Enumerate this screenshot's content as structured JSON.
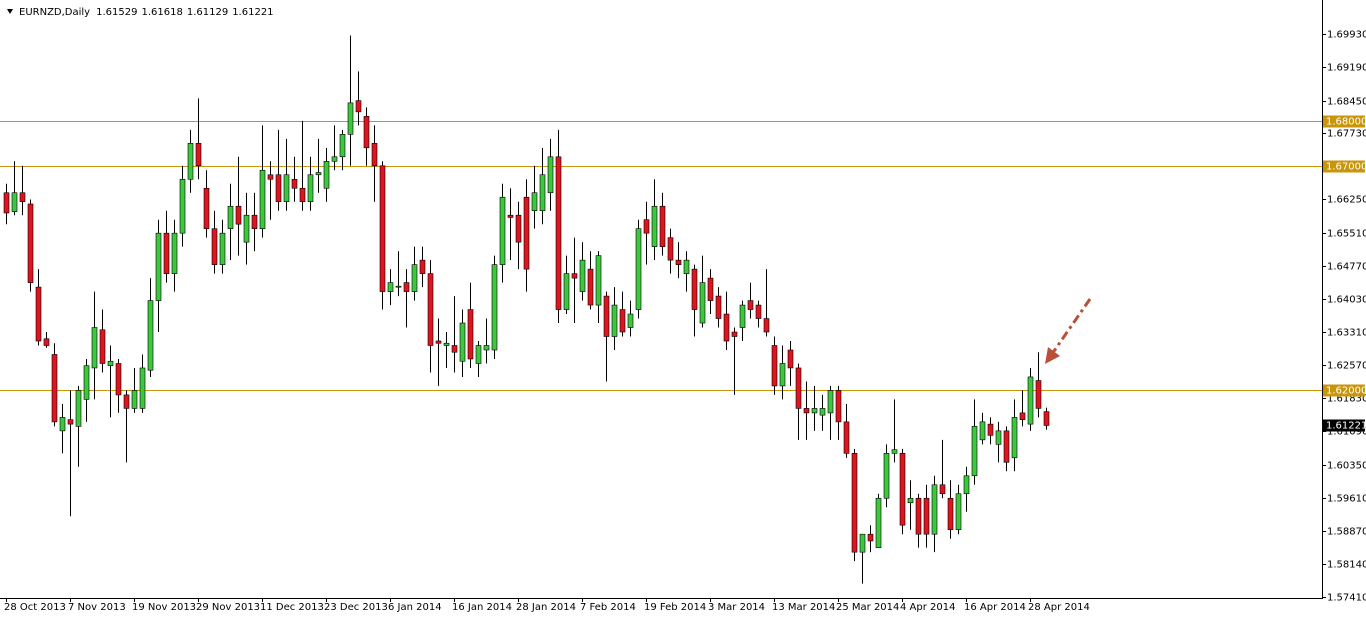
{
  "chart_data": {
    "type": "candlestick",
    "title": "EURNZD,Daily",
    "header_values": [
      1.61529,
      1.61618,
      1.61129,
      1.61221
    ],
    "categories": [
      "28 Oct 2013",
      null,
      null,
      null,
      null,
      null,
      null,
      null,
      "7 Nov 2013",
      null,
      null,
      null,
      null,
      null,
      null,
      null,
      "19 Nov 2013",
      null,
      null,
      null,
      null,
      null,
      null,
      null,
      "29 Nov 2013",
      null,
      null,
      null,
      null,
      null,
      null,
      null,
      "11 Dec 2013",
      null,
      null,
      null,
      null,
      null,
      null,
      null,
      "23 Dec 2013",
      null,
      null,
      null,
      null,
      null,
      null,
      null,
      "6 Jan 2014",
      null,
      null,
      null,
      null,
      null,
      null,
      null,
      "16 Jan 2014",
      null,
      null,
      null,
      null,
      null,
      null,
      null,
      "28 Jan 2014",
      null,
      null,
      null,
      null,
      null,
      null,
      null,
      "7 Feb 2014",
      null,
      null,
      null,
      null,
      null,
      null,
      null,
      "19 Feb 2014",
      null,
      null,
      null,
      null,
      null,
      null,
      null,
      "3 Mar 2014",
      null,
      null,
      null,
      null,
      null,
      null,
      null,
      "13 Mar 2014",
      null,
      null,
      null,
      null,
      null,
      null,
      null,
      "25 Mar 2014",
      null,
      null,
      null,
      null,
      null,
      null,
      null,
      "4 Apr 2014",
      null,
      null,
      null,
      null,
      null,
      null,
      null,
      "16 Apr 2014",
      null,
      null,
      null,
      null,
      null,
      null,
      null,
      "28 Apr 2014",
      null,
      null
    ],
    "open": [
      1.664,
      1.6598,
      1.664,
      1.6615,
      1.643,
      1.6315,
      1.628,
      1.611,
      1.6135,
      1.612,
      1.618,
      1.625,
      1.6335,
      1.6255,
      1.626,
      1.619,
      1.616,
      1.616,
      1.6245,
      1.64,
      1.655,
      1.646,
      1.655,
      1.667,
      1.675,
      1.665,
      1.656,
      1.648,
      1.656,
      1.661,
      1.653,
      1.659,
      1.656,
      1.668,
      1.668,
      1.662,
      1.667,
      1.665,
      1.662,
      1.668,
      1.665,
      1.671,
      1.672,
      1.677,
      1.6845,
      1.681,
      1.675,
      1.67,
      1.642,
      1.643,
      1.644,
      1.642,
      1.649,
      1.646,
      1.631,
      1.63,
      1.63,
      1.6265,
      1.638,
      1.626,
      1.629,
      1.629,
      1.648,
      1.659,
      1.659,
      1.663,
      1.66,
      1.66,
      1.664,
      1.672,
      1.638,
      1.646,
      1.642,
      1.647,
      1.639,
      1.641,
      1.632,
      1.638,
      1.634,
      1.638,
      1.658,
      1.652,
      1.661,
      1.654,
      1.649,
      1.646,
      1.647,
      1.635,
      1.645,
      1.641,
      1.637,
      1.633,
      1.634,
      1.64,
      1.639,
      1.636,
      1.63,
      1.621,
      1.629,
      1.625,
      1.616,
      1.615,
      1.6145,
      1.615,
      1.62,
      1.613,
      1.606,
      1.584,
      1.588,
      1.585,
      1.596,
      1.606,
      1.606,
      1.595,
      1.596,
      1.596,
      1.588,
      1.599,
      1.596,
      1.589,
      1.597,
      1.601,
      1.609,
      1.6125,
      1.608,
      1.611,
      1.605,
      1.615,
      1.6125,
      1.6222,
      1.61529
    ],
    "high": [
      1.666,
      1.671,
      1.67,
      1.6625,
      1.647,
      1.633,
      1.6305,
      1.617,
      1.62,
      1.621,
      1.627,
      1.642,
      1.638,
      1.63,
      1.627,
      1.62,
      1.625,
      1.628,
      1.645,
      1.658,
      1.66,
      1.658,
      1.67,
      1.678,
      1.685,
      1.669,
      1.66,
      1.658,
      1.666,
      1.672,
      1.664,
      1.664,
      1.679,
      1.671,
      1.678,
      1.676,
      1.672,
      1.68,
      1.672,
      1.676,
      1.674,
      1.679,
      1.678,
      1.699,
      1.691,
      1.683,
      1.679,
      1.671,
      1.647,
      1.651,
      1.647,
      1.652,
      1.652,
      1.649,
      1.636,
      1.633,
      1.641,
      1.638,
      1.644,
      1.631,
      1.636,
      1.65,
      1.666,
      1.665,
      1.662,
      1.667,
      1.67,
      1.674,
      1.676,
      1.678,
      1.65,
      1.654,
      1.653,
      1.651,
      1.651,
      1.642,
      1.643,
      1.642,
      1.64,
      1.658,
      1.662,
      1.667,
      1.664,
      1.656,
      1.653,
      1.651,
      1.648,
      1.65,
      1.647,
      1.643,
      1.642,
      1.634,
      1.64,
      1.644,
      1.64,
      1.647,
      1.632,
      1.63,
      1.631,
      1.626,
      1.622,
      1.621,
      1.619,
      1.621,
      1.621,
      1.617,
      1.607,
      1.588,
      1.59,
      1.597,
      1.608,
      1.618,
      1.607,
      1.6,
      1.597,
      1.599,
      1.601,
      1.609,
      1.6,
      1.599,
      1.603,
      1.618,
      1.615,
      1.614,
      1.613,
      1.612,
      1.618,
      1.62,
      1.625,
      1.6285,
      1.61618
    ],
    "low": [
      1.657,
      1.659,
      1.659,
      1.642,
      1.63,
      1.6295,
      1.612,
      1.606,
      1.592,
      1.603,
      1.613,
      1.618,
      1.624,
      1.614,
      1.615,
      1.604,
      1.615,
      1.615,
      1.623,
      1.633,
      1.644,
      1.642,
      1.652,
      1.664,
      1.667,
      1.654,
      1.646,
      1.646,
      1.649,
      1.65,
      1.648,
      1.651,
      1.654,
      1.658,
      1.66,
      1.66,
      1.662,
      1.66,
      1.66,
      1.664,
      1.662,
      1.669,
      1.669,
      1.67,
      1.679,
      1.67,
      1.662,
      1.638,
      1.639,
      1.641,
      1.634,
      1.64,
      1.643,
      1.624,
      1.621,
      1.625,
      1.624,
      1.623,
      1.625,
      1.623,
      1.626,
      1.627,
      1.644,
      1.649,
      1.647,
      1.642,
      1.656,
      1.657,
      1.66,
      1.635,
      1.637,
      1.635,
      1.64,
      1.638,
      1.635,
      1.622,
      1.629,
      1.632,
      1.632,
      1.636,
      1.648,
      1.649,
      1.65,
      1.646,
      1.645,
      1.642,
      1.632,
      1.634,
      1.637,
      1.634,
      1.629,
      1.619,
      1.631,
      1.636,
      1.634,
      1.632,
      1.619,
      1.618,
      1.621,
      1.609,
      1.609,
      1.611,
      1.611,
      1.609,
      1.609,
      1.605,
      1.582,
      1.577,
      1.584,
      1.585,
      1.594,
      1.604,
      1.588,
      1.589,
      1.585,
      1.585,
      1.584,
      1.596,
      1.587,
      1.588,
      1.593,
      1.599,
      1.608,
      1.608,
      1.604,
      1.602,
      1.602,
      1.612,
      1.611,
      1.614,
      1.61129
    ],
    "close": [
      1.6595,
      1.664,
      1.662,
      1.644,
      1.631,
      1.63,
      1.613,
      1.614,
      1.6125,
      1.62,
      1.6255,
      1.634,
      1.626,
      1.6265,
      1.619,
      1.616,
      1.62,
      1.625,
      1.64,
      1.655,
      1.646,
      1.655,
      1.667,
      1.675,
      1.67,
      1.656,
      1.648,
      1.655,
      1.661,
      1.657,
      1.659,
      1.656,
      1.669,
      1.667,
      1.662,
      1.668,
      1.665,
      1.662,
      1.668,
      1.6685,
      1.671,
      1.672,
      1.677,
      1.684,
      1.682,
      1.674,
      1.67,
      1.642,
      1.644,
      1.6432,
      1.642,
      1.648,
      1.646,
      1.63,
      1.6305,
      1.6305,
      1.6285,
      1.635,
      1.627,
      1.63,
      1.63,
      1.648,
      1.663,
      1.6585,
      1.653,
      1.647,
      1.664,
      1.668,
      1.672,
      1.638,
      1.646,
      1.645,
      1.649,
      1.639,
      1.65,
      1.632,
      1.639,
      1.633,
      1.637,
      1.656,
      1.655,
      1.661,
      1.652,
      1.649,
      1.648,
      1.649,
      1.638,
      1.644,
      1.64,
      1.636,
      1.631,
      1.632,
      1.639,
      1.638,
      1.636,
      1.633,
      1.621,
      1.626,
      1.625,
      1.616,
      1.615,
      1.616,
      1.616,
      1.62,
      1.613,
      1.606,
      1.584,
      1.588,
      1.5865,
      1.596,
      1.606,
      1.6068,
      1.59,
      1.596,
      1.588,
      1.588,
      1.599,
      1.597,
      1.589,
      1.597,
      1.601,
      1.612,
      1.613,
      1.61,
      1.611,
      1.604,
      1.614,
      1.6135,
      1.623,
      1.616,
      1.61221
    ],
    "up_color": "#3cc83c",
    "down_color": "#e0141e",
    "wick_color": "#000000",
    "ylim": [
      1.5738,
      1.7069
    ],
    "yticks": [
      {
        "value": 1.6993,
        "label": "1.69930"
      },
      {
        "value": 1.6919,
        "label": "1.69190"
      },
      {
        "value": 1.6845,
        "label": "1.68450"
      },
      {
        "value": 1.6773,
        "label": "1.67730"
      },
      {
        "value": 1.6625,
        "label": "1.66250"
      },
      {
        "value": 1.6551,
        "label": "1.65510"
      },
      {
        "value": 1.6477,
        "label": "1.64770"
      },
      {
        "value": 1.6403,
        "label": "1.64030"
      },
      {
        "value": 1.6331,
        "label": "1.63310"
      },
      {
        "value": 1.6257,
        "label": "1.62570"
      },
      {
        "value": 1.6183,
        "label": "1.61830"
      },
      {
        "value": 1.6109,
        "label": "1.61090"
      },
      {
        "value": 1.6035,
        "label": "1.60350"
      },
      {
        "value": 1.5961,
        "label": "1.59610"
      },
      {
        "value": 1.5887,
        "label": "1.58870"
      },
      {
        "value": 1.5814,
        "label": "1.58140"
      },
      {
        "value": 1.5741,
        "label": "1.57410"
      }
    ],
    "levels": [
      {
        "value": 1.68,
        "label": "1.68000"
      },
      {
        "value": 1.67,
        "label": "1.67000"
      },
      {
        "value": 1.62,
        "label": "1.62000"
      }
    ],
    "level_color": "#c8960c",
    "last_price": {
      "value": 1.61221,
      "label": "1.61221"
    },
    "grid": false
  }
}
